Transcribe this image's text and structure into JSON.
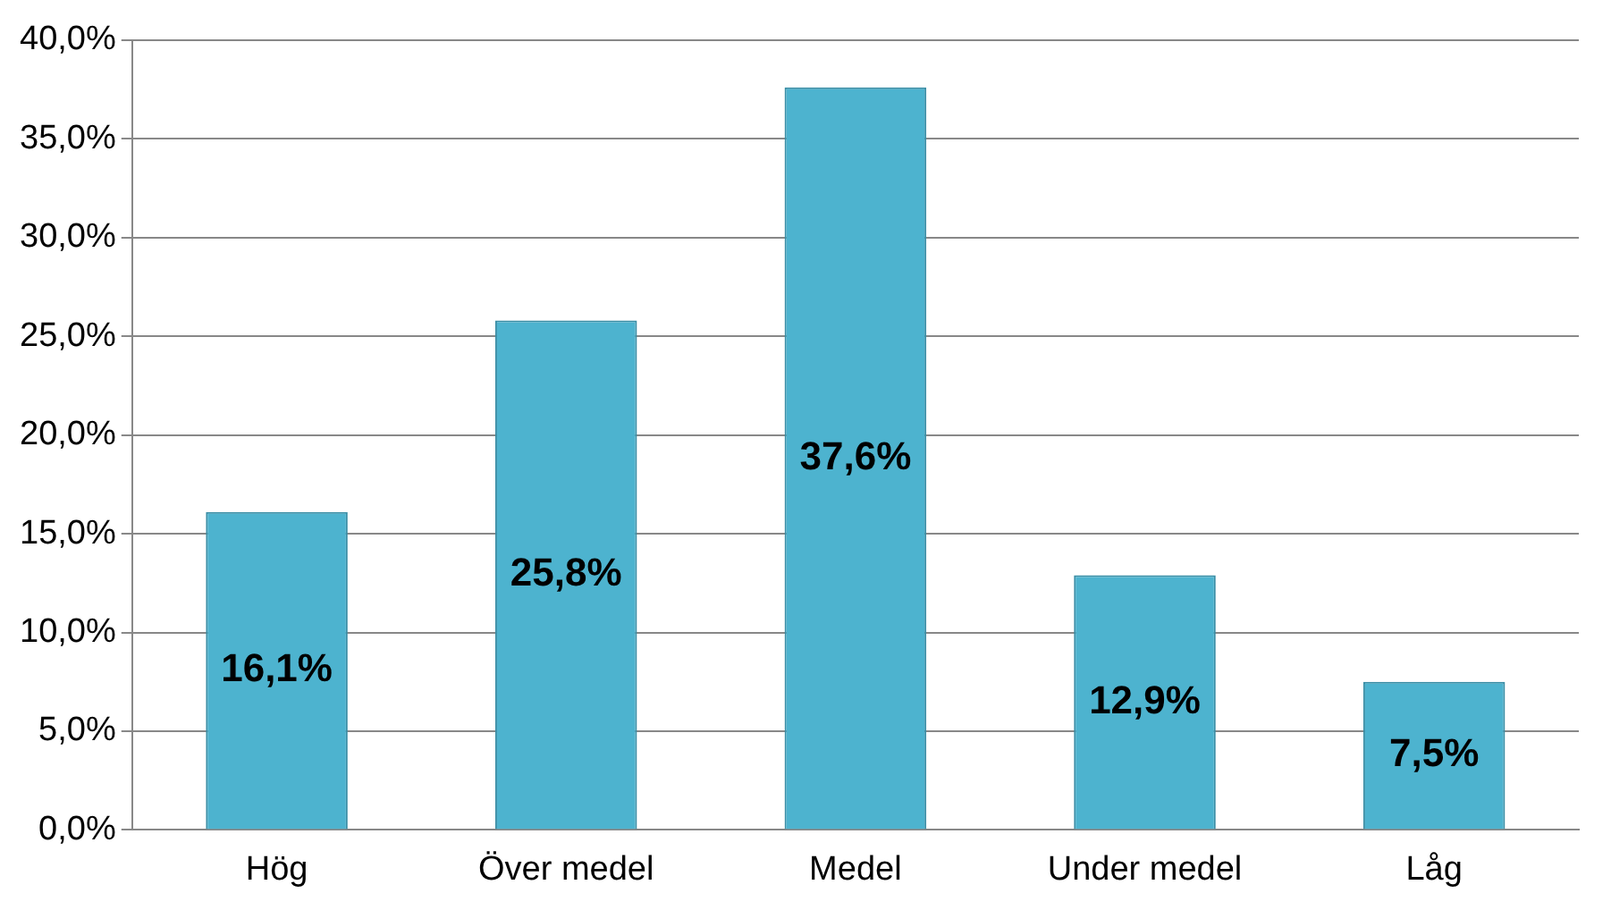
{
  "chart_data": {
    "type": "bar",
    "categories": [
      "Hög",
      "Över medel",
      "Medel",
      "Under medel",
      "Låg"
    ],
    "values": [
      16.1,
      25.8,
      37.6,
      12.9,
      7.5
    ],
    "color": "#4db3cf",
    "value_labels": [
      "16,1%",
      "25,8%",
      "37,6%",
      "12,9%",
      "7,5%"
    ],
    "ylim": [
      0,
      40
    ],
    "yticks": [
      {
        "value": 0,
        "label": "0,0%"
      },
      {
        "value": 5,
        "label": "5,0%"
      },
      {
        "value": 10,
        "label": "10,0%"
      },
      {
        "value": 15,
        "label": "15,0%"
      },
      {
        "value": 20,
        "label": "20,0%"
      },
      {
        "value": 25,
        "label": "25,0%"
      },
      {
        "value": 30,
        "label": "30,0%"
      },
      {
        "value": 35,
        "label": "35,0%"
      },
      {
        "value": 40,
        "label": "40,0%"
      }
    ],
    "grid": "y",
    "legend": false
  }
}
